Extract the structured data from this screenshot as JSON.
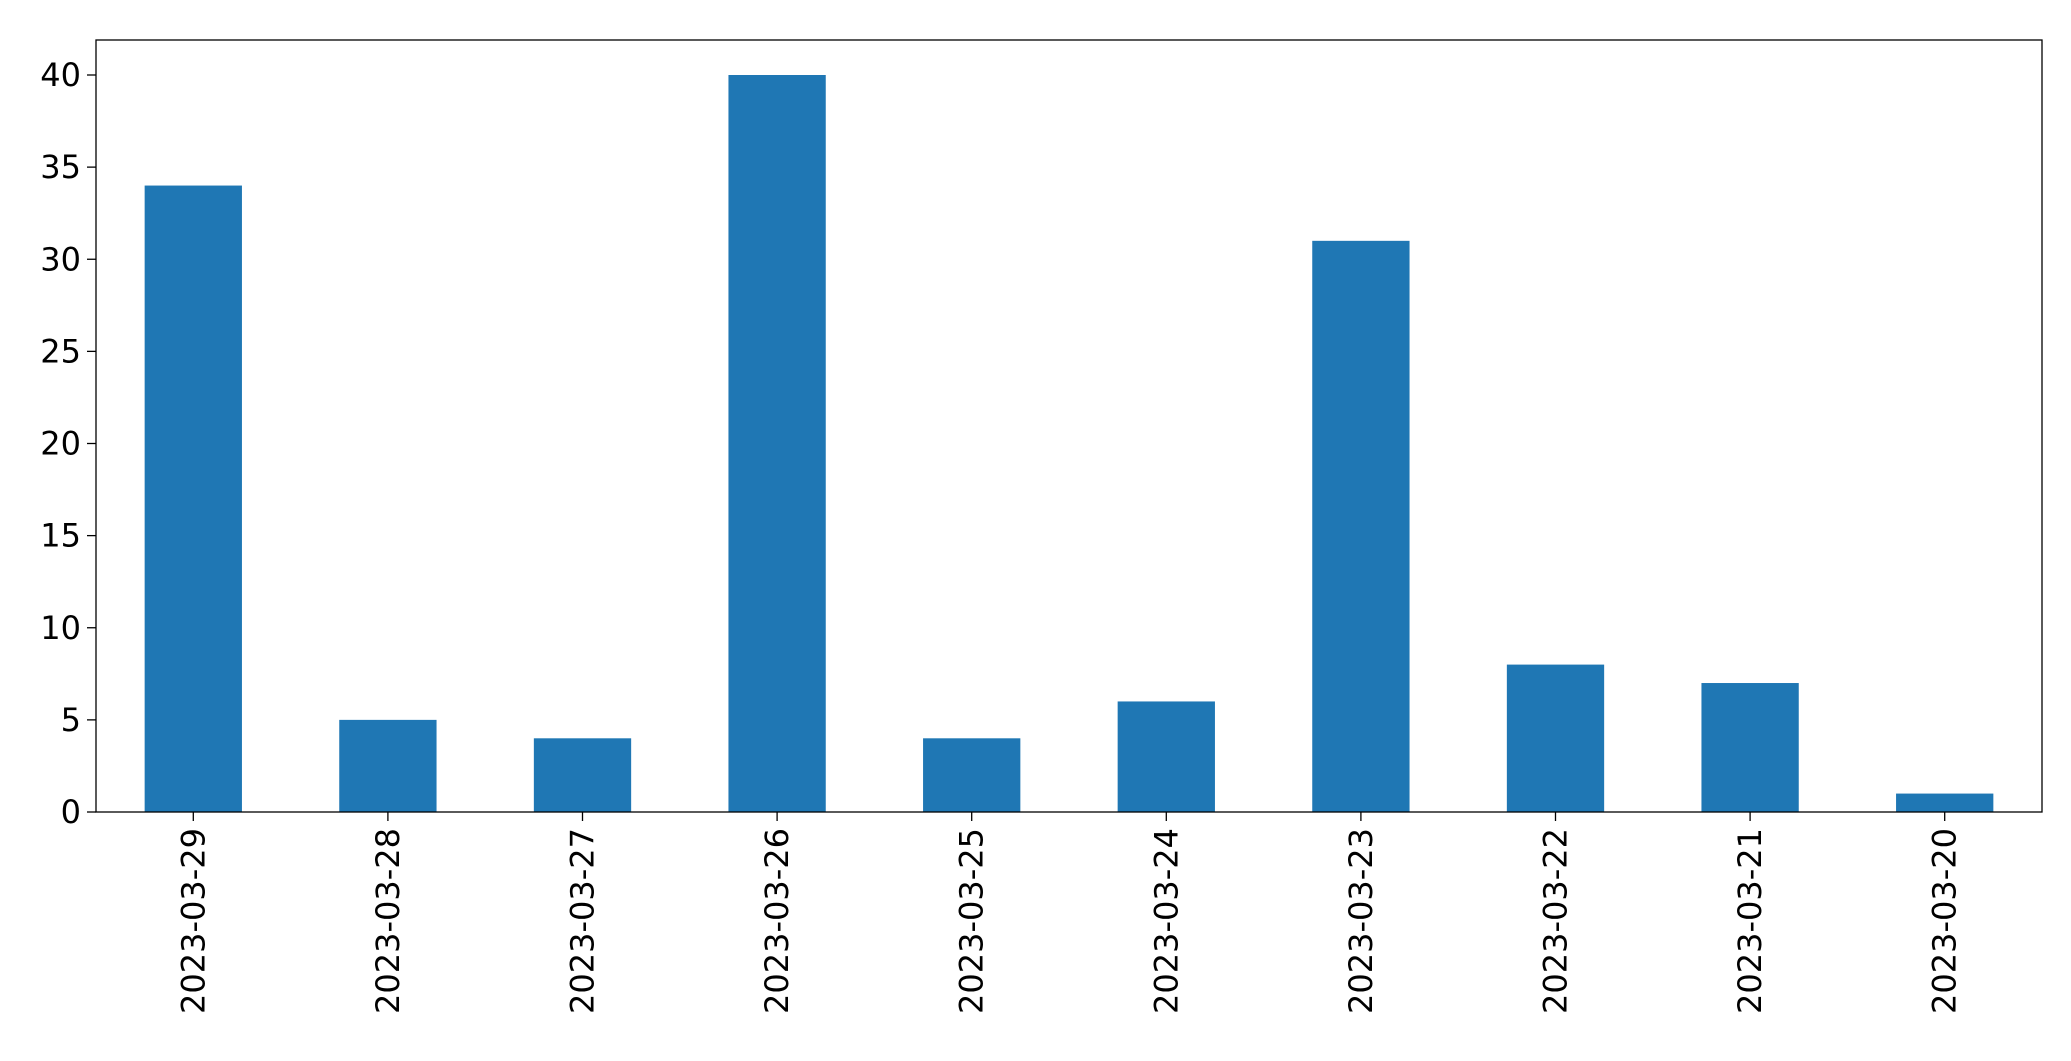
{
  "chart_data": {
    "type": "bar",
    "categories": [
      "2023-03-29",
      "2023-03-28",
      "2023-03-27",
      "2023-03-26",
      "2023-03-25",
      "2023-03-24",
      "2023-03-23",
      "2023-03-22",
      "2023-03-21",
      "2023-03-20"
    ],
    "values": [
      34,
      5,
      4,
      40,
      4,
      6,
      31,
      8,
      7,
      1
    ],
    "title": "",
    "xlabel": "",
    "ylabel": "",
    "ylim": [
      0,
      42
    ],
    "yticks": [
      0,
      5,
      10,
      15,
      20,
      25,
      30,
      35,
      40
    ],
    "grid": false,
    "legend": "none",
    "bar_color": "#1f77b4",
    "x_tick_rotation": 90
  }
}
